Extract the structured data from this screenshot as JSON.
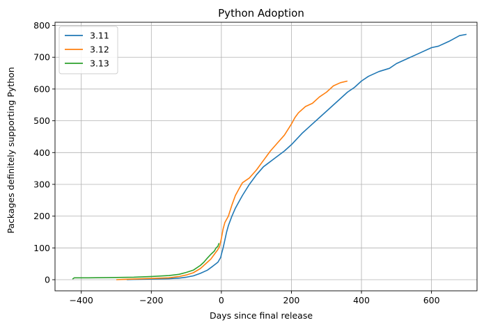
{
  "chart_data": {
    "type": "line",
    "title": "Python Adoption",
    "xlabel": "Days since final release",
    "ylabel": "Packages definitely supporting Python",
    "xlim": [
      -475,
      730
    ],
    "ylim": [
      -35,
      810
    ],
    "xticks": [
      -400,
      -200,
      0,
      200,
      400,
      600
    ],
    "yticks": [
      0,
      100,
      200,
      300,
      400,
      500,
      600,
      700,
      800
    ],
    "grid": true,
    "legend_position": "top-left",
    "series": [
      {
        "name": "3.11",
        "color": "#1f77b4",
        "points": [
          [
            -270,
            0
          ],
          [
            -250,
            1
          ],
          [
            -200,
            2
          ],
          [
            -150,
            3
          ],
          [
            -120,
            5
          ],
          [
            -100,
            8
          ],
          [
            -80,
            12
          ],
          [
            -60,
            20
          ],
          [
            -40,
            30
          ],
          [
            -25,
            42
          ],
          [
            -10,
            55
          ],
          [
            -2,
            70
          ],
          [
            0,
            80
          ],
          [
            5,
            100
          ],
          [
            10,
            125
          ],
          [
            15,
            150
          ],
          [
            20,
            170
          ],
          [
            30,
            200
          ],
          [
            40,
            225
          ],
          [
            50,
            245
          ],
          [
            60,
            265
          ],
          [
            80,
            300
          ],
          [
            100,
            330
          ],
          [
            120,
            355
          ],
          [
            150,
            380
          ],
          [
            180,
            405
          ],
          [
            200,
            425
          ],
          [
            230,
            460
          ],
          [
            250,
            480
          ],
          [
            280,
            510
          ],
          [
            300,
            530
          ],
          [
            340,
            570
          ],
          [
            360,
            590
          ],
          [
            380,
            605
          ],
          [
            400,
            625
          ],
          [
            420,
            640
          ],
          [
            450,
            655
          ],
          [
            480,
            665
          ],
          [
            500,
            680
          ],
          [
            530,
            695
          ],
          [
            560,
            710
          ],
          [
            600,
            730
          ],
          [
            620,
            735
          ],
          [
            650,
            750
          ],
          [
            680,
            768
          ],
          [
            700,
            772
          ]
        ]
      },
      {
        "name": "3.12",
        "color": "#ff7f0e",
        "points": [
          [
            -300,
            0
          ],
          [
            -280,
            1
          ],
          [
            -250,
            2
          ],
          [
            -200,
            4
          ],
          [
            -150,
            6
          ],
          [
            -120,
            10
          ],
          [
            -100,
            15
          ],
          [
            -80,
            22
          ],
          [
            -60,
            35
          ],
          [
            -50,
            45
          ],
          [
            -40,
            55
          ],
          [
            -30,
            65
          ],
          [
            -20,
            80
          ],
          [
            -10,
            95
          ],
          [
            -5,
            105
          ],
          [
            0,
            130
          ],
          [
            5,
            160
          ],
          [
            10,
            180
          ],
          [
            20,
            200
          ],
          [
            30,
            235
          ],
          [
            40,
            265
          ],
          [
            50,
            285
          ],
          [
            60,
            305
          ],
          [
            80,
            320
          ],
          [
            100,
            345
          ],
          [
            120,
            375
          ],
          [
            140,
            405
          ],
          [
            160,
            430
          ],
          [
            180,
            455
          ],
          [
            200,
            490
          ],
          [
            210,
            510
          ],
          [
            220,
            525
          ],
          [
            240,
            545
          ],
          [
            260,
            555
          ],
          [
            280,
            575
          ],
          [
            300,
            590
          ],
          [
            320,
            610
          ],
          [
            340,
            620
          ],
          [
            360,
            625
          ]
        ]
      },
      {
        "name": "3.13",
        "color": "#2ca02c",
        "points": [
          [
            -425,
            2
          ],
          [
            -420,
            6
          ],
          [
            -380,
            6
          ],
          [
            -300,
            7
          ],
          [
            -250,
            8
          ],
          [
            -200,
            10
          ],
          [
            -150,
            13
          ],
          [
            -120,
            17
          ],
          [
            -100,
            23
          ],
          [
            -80,
            30
          ],
          [
            -60,
            45
          ],
          [
            -50,
            55
          ],
          [
            -40,
            68
          ],
          [
            -30,
            80
          ],
          [
            -20,
            90
          ],
          [
            -15,
            100
          ],
          [
            -10,
            105
          ],
          [
            -7,
            115
          ]
        ]
      }
    ]
  }
}
